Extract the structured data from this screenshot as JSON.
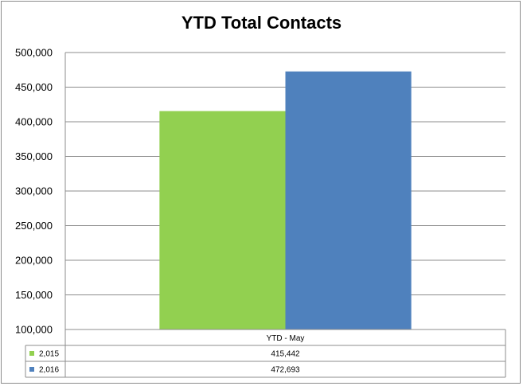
{
  "chart_data": {
    "type": "bar",
    "title": "YTD Total Contacts",
    "categories": [
      "YTD - May"
    ],
    "series": [
      {
        "name": "2,015",
        "values": [
          415442
        ],
        "value_labels": [
          "415,442"
        ],
        "color": "#92d050"
      },
      {
        "name": "2,016",
        "values": [
          472693
        ],
        "value_labels": [
          "472,693"
        ],
        "color": "#4f81bd"
      }
    ],
    "ylim": [
      100000,
      500000
    ],
    "yticks": [
      100000,
      150000,
      200000,
      250000,
      300000,
      350000,
      400000,
      450000,
      500000
    ],
    "ytick_labels": [
      "100,000",
      "150,000",
      "200,000",
      "250,000",
      "300,000",
      "350,000",
      "400,000",
      "450,000",
      "500,000"
    ],
    "grid": true,
    "legend": "data-table-below",
    "xlabel": "",
    "ylabel": ""
  }
}
